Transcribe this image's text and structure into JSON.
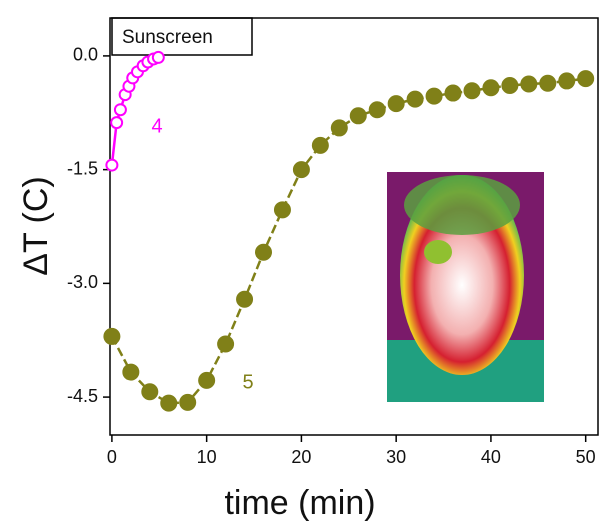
{
  "chart_data": {
    "type": "scatter",
    "x_label": "time (min)",
    "y_label": "ΔT (C)",
    "legend_title": "Sunscreen",
    "xlim": [
      -0.2,
      51.3
    ],
    "ylim": [
      -5.0,
      0.5
    ],
    "xticks": [
      0,
      10,
      20,
      30,
      40,
      50
    ],
    "yticks": [
      {
        "value": 0,
        "label": "0.0"
      },
      {
        "value": -1.5,
        "label": "-1.5"
      },
      {
        "value": -3.0,
        "label": "-3.0"
      },
      {
        "value": -4.5,
        "label": "-4.5"
      }
    ],
    "series": [
      {
        "name": "4",
        "color": "#ff00ff",
        "marker": "open",
        "line": "solid",
        "x": [
          0,
          0.5,
          0.9,
          1.4,
          1.8,
          2.2,
          2.7,
          3.3,
          3.8,
          4.4,
          4.9
        ],
        "values": [
          -1.44,
          -0.88,
          -0.71,
          -0.51,
          -0.4,
          -0.29,
          -0.21,
          -0.13,
          -0.08,
          -0.04,
          -0.02
        ]
      },
      {
        "name": "5",
        "color": "#808018",
        "marker": "filled",
        "line": "dashed",
        "x": [
          0,
          2,
          4,
          6,
          8,
          10,
          12,
          14,
          16,
          18,
          20,
          22,
          24,
          26,
          28,
          30,
          32,
          34,
          36,
          38,
          40,
          42,
          44,
          46,
          48,
          50
        ],
        "values": [
          -3.7,
          -4.17,
          -4.43,
          -4.58,
          -4.57,
          -4.28,
          -3.8,
          -3.21,
          -2.59,
          -2.03,
          -1.5,
          -1.18,
          -0.95,
          -0.79,
          -0.71,
          -0.63,
          -0.57,
          -0.53,
          -0.49,
          -0.46,
          -0.42,
          -0.39,
          -0.37,
          -0.36,
          -0.33,
          -0.3
        ]
      }
    ]
  }
}
